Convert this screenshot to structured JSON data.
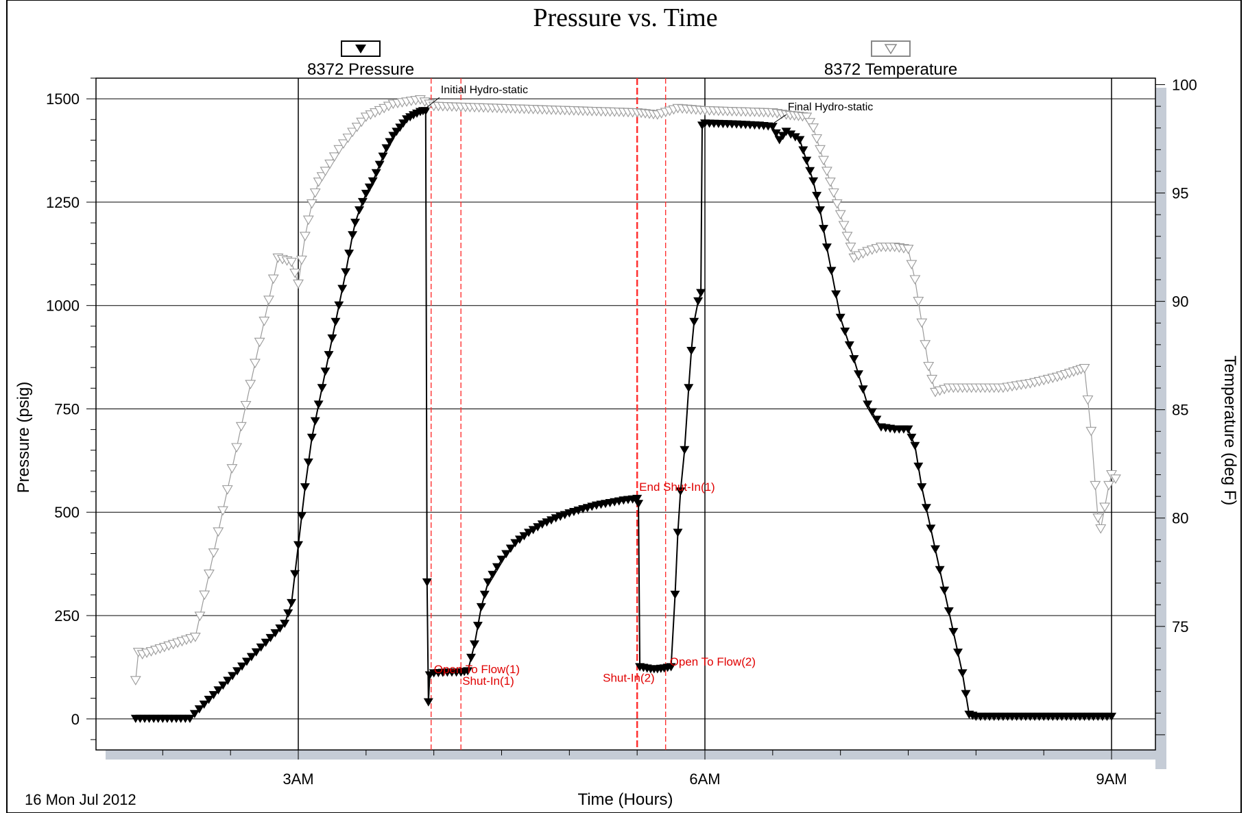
{
  "chart_data": {
    "type": "line",
    "title": "Pressure vs. Time",
    "xlabel": "Time (Hours)",
    "ylabel": "Pressure (psig)",
    "y2label": "Temperature (deg F)",
    "date_label": "16 Mon Jul 2012",
    "x_tick_labels": [
      "3AM",
      "6AM",
      "9AM"
    ],
    "y_ticks": [
      0,
      250,
      500,
      750,
      1000,
      1250,
      1500
    ],
    "y2_ticks": [
      75,
      80,
      85,
      90,
      95,
      100
    ],
    "xlim": [
      1.5,
      9.3
    ],
    "ylim": [
      -75,
      1550
    ],
    "y2lim": [
      69.3,
      100.3
    ],
    "grid": true,
    "legend_position": "top",
    "colors": {
      "pressure": "#000000",
      "temperature": "#9a9a9a",
      "event_line": "#ff3030",
      "event_text": "#e00000",
      "shadow": "#c5ccd6"
    },
    "series": [
      {
        "name": "8372 Pressure",
        "axis": "left",
        "marker": "filled-down-triangle",
        "points": [
          [
            1.8,
            0
          ],
          [
            2.2,
            0
          ],
          [
            2.9,
            230
          ],
          [
            2.95,
            280
          ],
          [
            3.0,
            420
          ],
          [
            3.05,
            560
          ],
          [
            3.1,
            680
          ],
          [
            3.15,
            760
          ],
          [
            3.2,
            840
          ],
          [
            3.25,
            920
          ],
          [
            3.3,
            1000
          ],
          [
            3.35,
            1080
          ],
          [
            3.4,
            1170
          ],
          [
            3.42,
            1200
          ],
          [
            3.45,
            1230
          ],
          [
            3.5,
            1270
          ],
          [
            3.55,
            1300
          ],
          [
            3.6,
            1340
          ],
          [
            3.65,
            1380
          ],
          [
            3.7,
            1410
          ],
          [
            3.75,
            1430
          ],
          [
            3.8,
            1450
          ],
          [
            3.85,
            1460
          ],
          [
            3.9,
            1468
          ],
          [
            3.92,
            1470
          ],
          [
            3.94,
            1470
          ],
          [
            3.95,
            330
          ],
          [
            3.96,
            40
          ],
          [
            3.97,
            105
          ],
          [
            4.0,
            110
          ],
          [
            4.1,
            112
          ],
          [
            4.2,
            112
          ],
          [
            4.25,
            115
          ],
          [
            4.3,
            180
          ],
          [
            4.35,
            270
          ],
          [
            4.4,
            330
          ],
          [
            4.5,
            385
          ],
          [
            4.6,
            425
          ],
          [
            4.7,
            450
          ],
          [
            4.8,
            470
          ],
          [
            4.9,
            485
          ],
          [
            5.0,
            497
          ],
          [
            5.1,
            507
          ],
          [
            5.2,
            516
          ],
          [
            5.3,
            522
          ],
          [
            5.4,
            528
          ],
          [
            5.5,
            532
          ],
          [
            5.51,
            520
          ],
          [
            5.52,
            125
          ],
          [
            5.6,
            120
          ],
          [
            5.65,
            120
          ],
          [
            5.7,
            122
          ],
          [
            5.75,
            125
          ],
          [
            5.78,
            300
          ],
          [
            5.8,
            450
          ],
          [
            5.82,
            550
          ],
          [
            5.85,
            650
          ],
          [
            5.88,
            800
          ],
          [
            5.9,
            890
          ],
          [
            5.92,
            960
          ],
          [
            5.95,
            1010
          ],
          [
            5.97,
            1030
          ],
          [
            5.98,
            1435
          ],
          [
            6.0,
            1440
          ],
          [
            6.2,
            1438
          ],
          [
            6.4,
            1435
          ],
          [
            6.5,
            1432
          ],
          [
            6.55,
            1400
          ],
          [
            6.6,
            1420
          ],
          [
            6.7,
            1400
          ],
          [
            6.75,
            1350
          ],
          [
            6.8,
            1300
          ],
          [
            6.85,
            1230
          ],
          [
            6.9,
            1140
          ],
          [
            7.0,
            970
          ],
          [
            7.1,
            870
          ],
          [
            7.2,
            760
          ],
          [
            7.3,
            705
          ],
          [
            7.4,
            700
          ],
          [
            7.5,
            700
          ],
          [
            7.55,
            660
          ],
          [
            7.6,
            560
          ],
          [
            7.7,
            410
          ],
          [
            7.8,
            260
          ],
          [
            7.9,
            110
          ],
          [
            7.95,
            10
          ],
          [
            8.0,
            5
          ],
          [
            8.5,
            5
          ],
          [
            9.0,
            5
          ]
        ]
      },
      {
        "name": "8372 Temperature",
        "axis": "right",
        "marker": "open-down-triangle",
        "points": [
          [
            1.8,
            72.5
          ],
          [
            1.82,
            73.8
          ],
          [
            1.85,
            73.7
          ],
          [
            2.24,
            74.5
          ],
          [
            2.85,
            92.0
          ],
          [
            2.95,
            91.8
          ],
          [
            3.0,
            90.8
          ],
          [
            3.05,
            93.0
          ],
          [
            3.1,
            94.5
          ],
          [
            3.15,
            95.5
          ],
          [
            3.2,
            96.0
          ],
          [
            3.3,
            97.0
          ],
          [
            3.4,
            97.8
          ],
          [
            3.5,
            98.5
          ],
          [
            3.6,
            98.8
          ],
          [
            3.7,
            99.1
          ],
          [
            3.8,
            99.2
          ],
          [
            3.9,
            99.3
          ],
          [
            4.0,
            99.0
          ],
          [
            4.5,
            98.9
          ],
          [
            5.0,
            98.8
          ],
          [
            5.5,
            98.7
          ],
          [
            5.65,
            98.6
          ],
          [
            5.8,
            98.9
          ],
          [
            6.0,
            98.8
          ],
          [
            6.5,
            98.7
          ],
          [
            6.6,
            98.6
          ],
          [
            6.75,
            98.5
          ],
          [
            6.8,
            98.0
          ],
          [
            6.85,
            97.0
          ],
          [
            6.9,
            96.0
          ],
          [
            6.95,
            95.0
          ],
          [
            7.0,
            94.0
          ],
          [
            7.05,
            93.0
          ],
          [
            7.1,
            92.0
          ],
          [
            7.2,
            92.3
          ],
          [
            7.3,
            92.5
          ],
          [
            7.4,
            92.5
          ],
          [
            7.5,
            92.4
          ],
          [
            7.55,
            91.0
          ],
          [
            7.6,
            89.0
          ],
          [
            7.65,
            87.0
          ],
          [
            7.7,
            85.8
          ],
          [
            7.8,
            86.0
          ],
          [
            8.0,
            86.0
          ],
          [
            8.2,
            86.0
          ],
          [
            8.4,
            86.2
          ],
          [
            8.6,
            86.5
          ],
          [
            8.75,
            86.8
          ],
          [
            8.8,
            86.9
          ],
          [
            8.85,
            84.0
          ],
          [
            8.88,
            81.5
          ],
          [
            8.9,
            80.0
          ],
          [
            8.92,
            79.5
          ],
          [
            8.95,
            80.5
          ],
          [
            8.98,
            81.5
          ],
          [
            9.0,
            82.0
          ],
          [
            9.03,
            81.8
          ]
        ]
      }
    ],
    "annotations": [
      {
        "text": "Initial Hydro-static",
        "x": 3.94,
        "y": 1470,
        "color": "black"
      },
      {
        "text": "Final Hydro-static",
        "x": 6.5,
        "y": 1432,
        "color": "black"
      },
      {
        "text": "Open To Flow(1)",
        "x": 3.97,
        "y": 107,
        "color": "red"
      },
      {
        "text": "Shut-In(1)",
        "x": 4.2,
        "y": 112,
        "color": "red"
      },
      {
        "text": "End Shut-In(1)",
        "x": 5.5,
        "y": 532,
        "color": "red"
      },
      {
        "text": "Shut-In(2)",
        "x": 5.52,
        "y": 120,
        "color": "red"
      },
      {
        "text": "Open To Flow(2)",
        "x": 5.72,
        "y": 122,
        "color": "red"
      }
    ],
    "event_lines": [
      {
        "x": 3.98,
        "style": "dashed"
      },
      {
        "x": 4.2,
        "style": "dashed"
      },
      {
        "x": 5.5,
        "style": "dashed-thick"
      },
      {
        "x": 5.71,
        "style": "dashed"
      }
    ]
  }
}
